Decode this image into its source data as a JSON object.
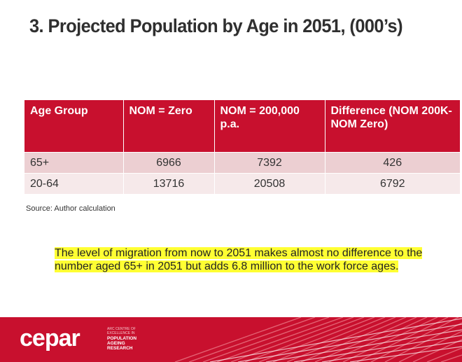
{
  "slide": {
    "title": "3. Projected Population by Age in 2051, (000’s)",
    "source": "Source: Author calculation",
    "note": "The level of migration from now to 2051 makes almost no difference to the number aged 65+ in 2051 but adds 6.8 million to the work force ages."
  },
  "table": {
    "headers": [
      "Age Group",
      "NOM = Zero",
      "NOM = 200,000 p.a.",
      "Difference (NOM 200K-NOM Zero)"
    ],
    "rows": [
      [
        "65+",
        "6966",
        "7392",
        "426"
      ],
      [
        "20-64",
        "13716",
        "20508",
        "6792"
      ]
    ]
  },
  "footer": {
    "logo_word": "cepar",
    "logo_line1": "ARC CENTRE OF EXCELLENCE IN",
    "logo_line2": "POPULATION AGEING RESEARCH",
    "accent_color": "#c8102e"
  }
}
